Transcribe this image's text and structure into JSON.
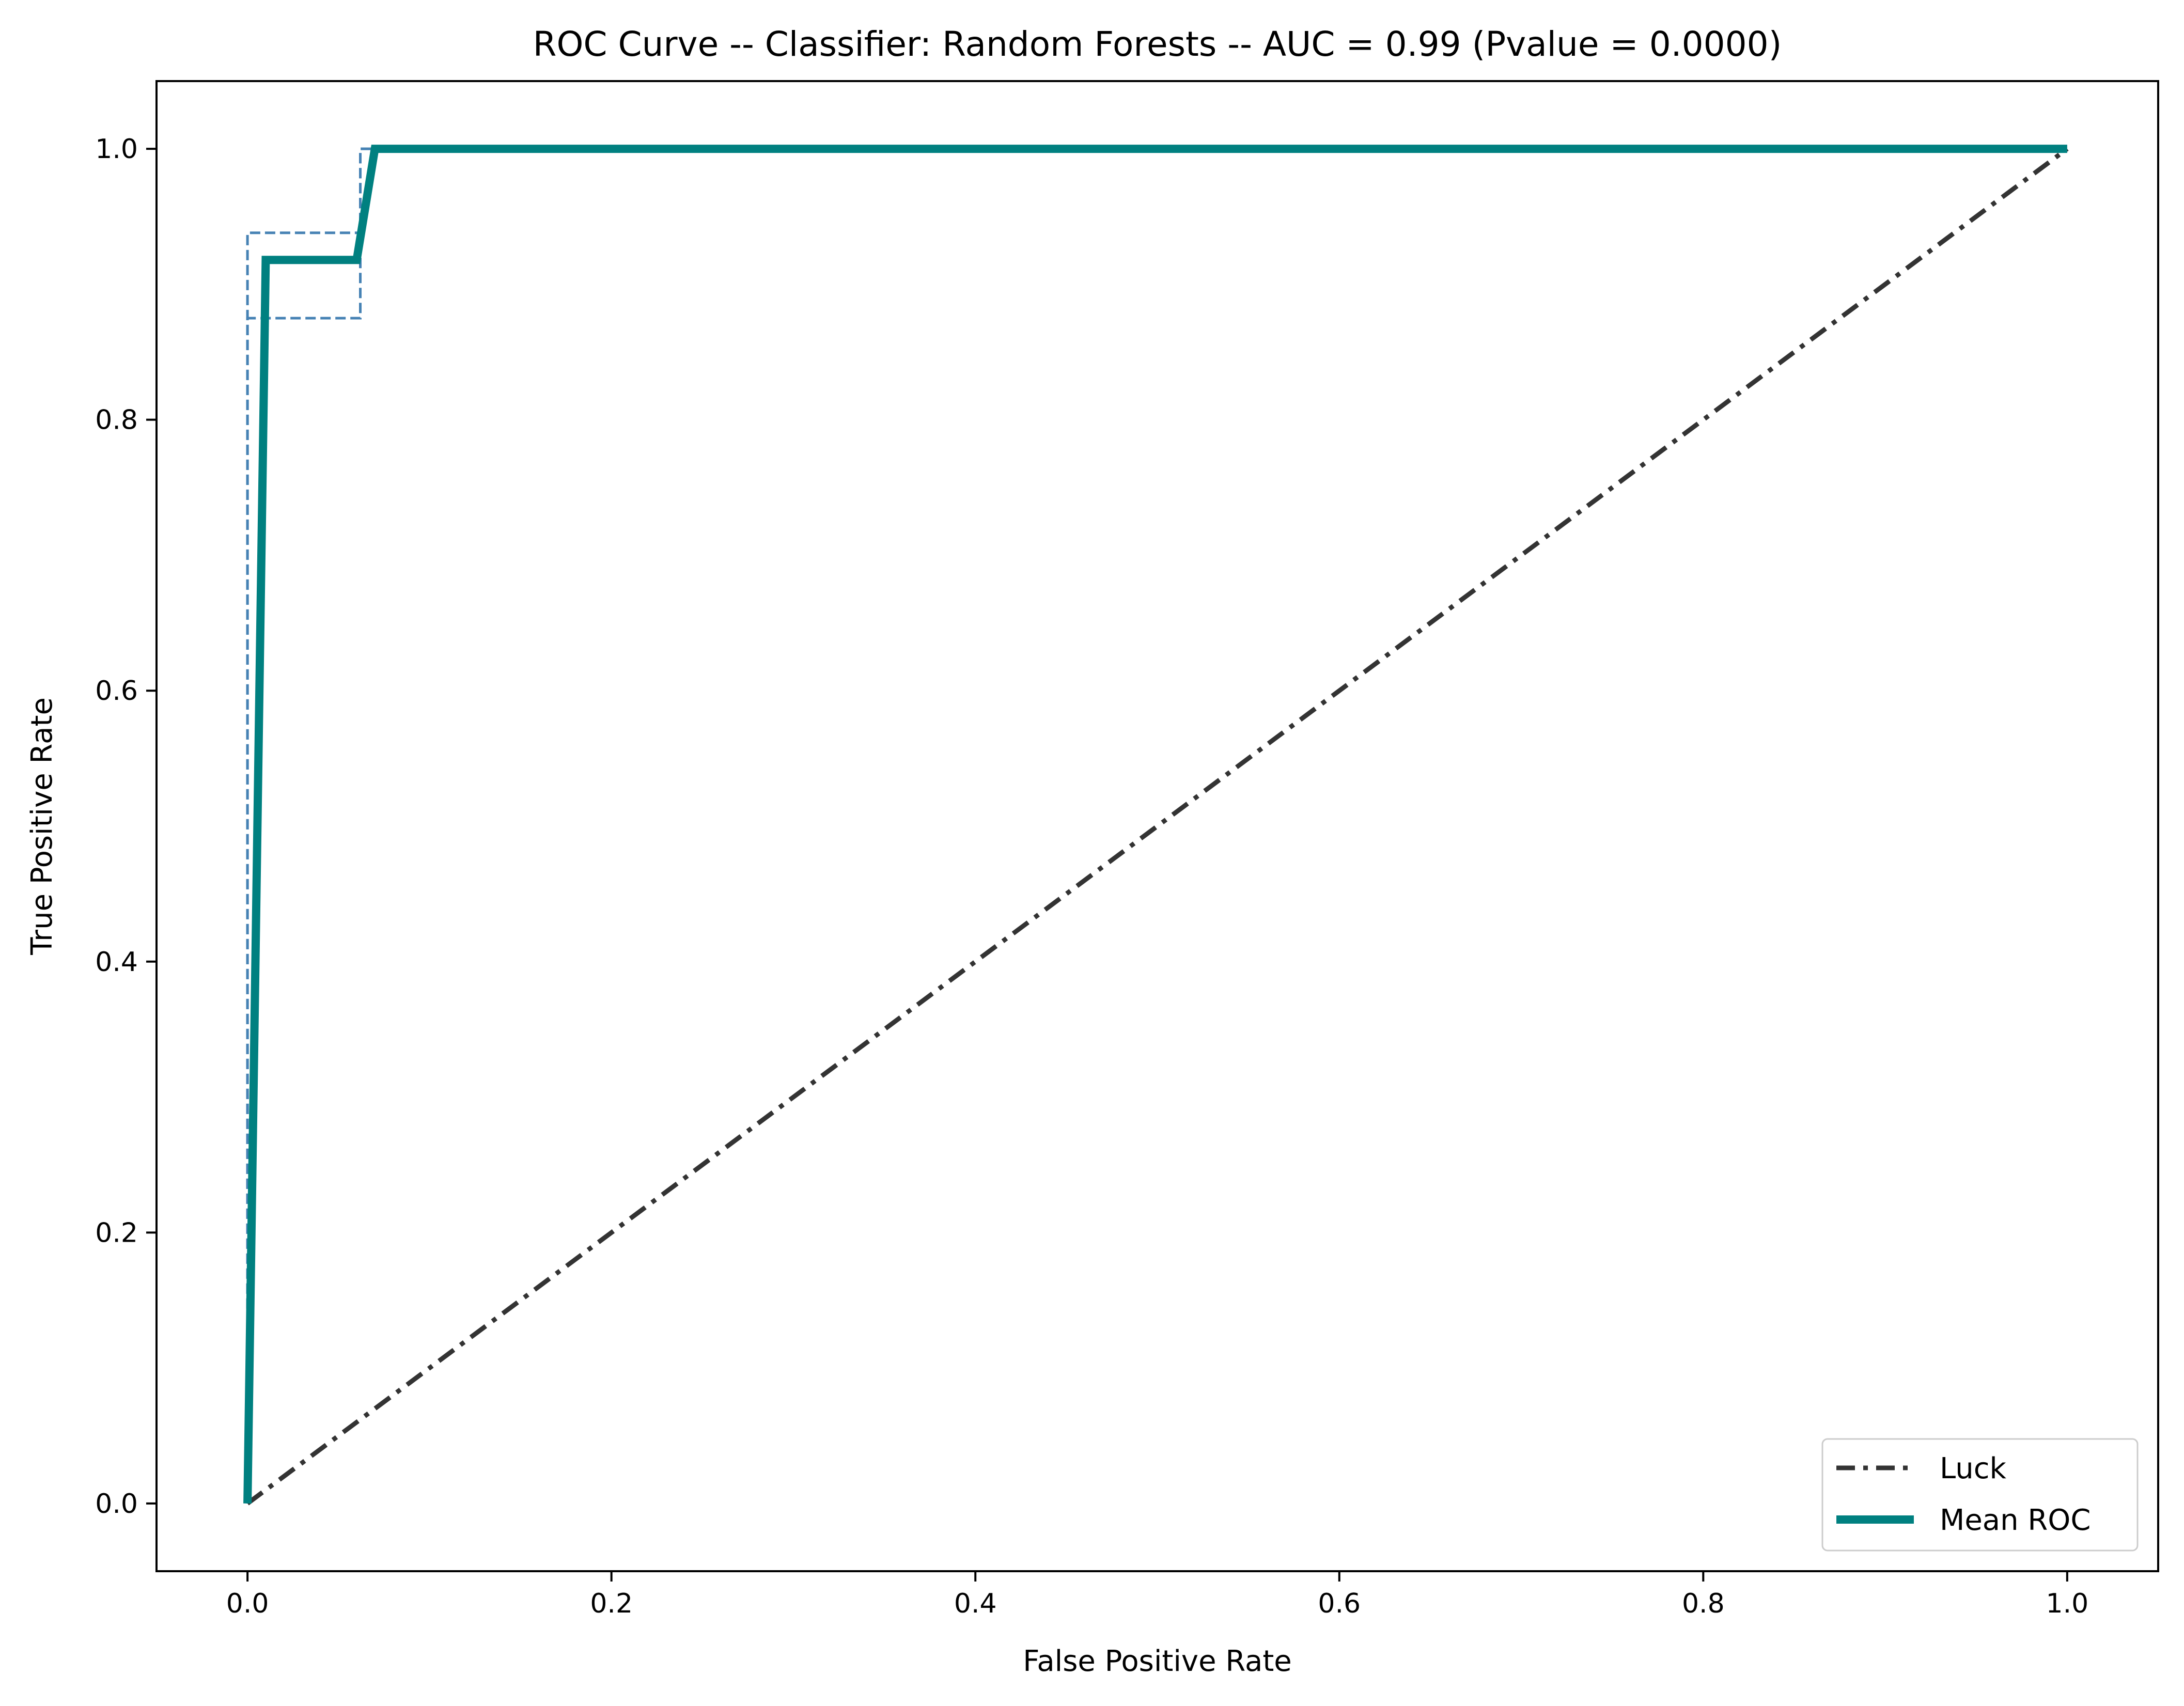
{
  "chart_data": {
    "type": "line",
    "title": "ROC Curve -- Classifier: Random Forests -- AUC = 0.99 (Pvalue = 0.0000)",
    "xlabel": "False Positive Rate",
    "ylabel": "True Positive Rate",
    "xlim": [
      -0.05,
      1.05
    ],
    "ylim": [
      -0.05,
      1.05
    ],
    "xticks": [
      0.0,
      0.2,
      0.4,
      0.6,
      0.8,
      1.0
    ],
    "yticks": [
      0.0,
      0.2,
      0.4,
      0.6,
      0.8,
      1.0
    ],
    "xtick_labels": [
      "0.0",
      "0.2",
      "0.4",
      "0.6",
      "0.8",
      "1.0"
    ],
    "ytick_labels": [
      "0.0",
      "0.2",
      "0.4",
      "0.6",
      "0.8",
      "1.0"
    ],
    "grid": false,
    "legend_position": "lower-right",
    "series": [
      {
        "name": "Luck",
        "style": "dash-dot",
        "color": "#333333",
        "x": [
          0.0,
          1.0
        ],
        "y": [
          0.0,
          1.0
        ]
      },
      {
        "name": "Mean ROC",
        "style": "solid",
        "color": "#008080",
        "x": [
          0.0,
          0.01,
          0.06,
          0.07,
          1.0
        ],
        "y": [
          0.0,
          0.918,
          0.918,
          1.0,
          1.0
        ]
      },
      {
        "style": "dashed",
        "color": "#4682b4",
        "x": [
          0.0,
          0.0,
          0.062,
          0.062,
          1.0
        ],
        "y": [
          0.0,
          0.875,
          0.875,
          1.0,
          1.0
        ]
      },
      {
        "style": "dashed",
        "color": "#4682b4",
        "x": [
          0.0,
          0.0,
          0.062,
          0.062,
          1.0
        ],
        "y": [
          0.0,
          0.938,
          0.938,
          1.0,
          1.0
        ]
      }
    ]
  }
}
